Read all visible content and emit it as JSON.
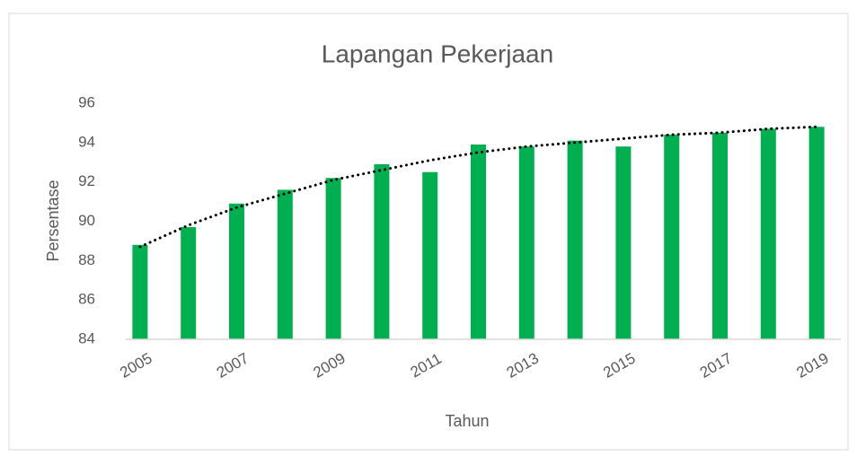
{
  "chart_data": {
    "type": "bar",
    "title": "Lapangan Pekerjaan",
    "x_label": "Tahun",
    "y_label": "Persentase",
    "categories": [
      "2005",
      null,
      "2007",
      null,
      "2009",
      null,
      "2011",
      null,
      "2013",
      null,
      "2015",
      null,
      "2017",
      null,
      "2019"
    ],
    "values": [
      88.8,
      89.7,
      90.9,
      91.6,
      92.2,
      92.9,
      92.5,
      93.9,
      93.8,
      94.1,
      93.8,
      94.4,
      94.5,
      94.7,
      94.8
    ],
    "color": "#00b050",
    "trendline": {
      "values": [
        88.7,
        89.8,
        90.7,
        91.4,
        92.1,
        92.6,
        93.1,
        93.5,
        93.8,
        94.0,
        94.2,
        94.4,
        94.5,
        94.7,
        94.8
      ],
      "color": "#000000"
    },
    "ylim": [
      84,
      96
    ],
    "yticks": [
      84,
      86,
      88,
      90,
      92,
      94,
      96
    ],
    "grid": false
  }
}
